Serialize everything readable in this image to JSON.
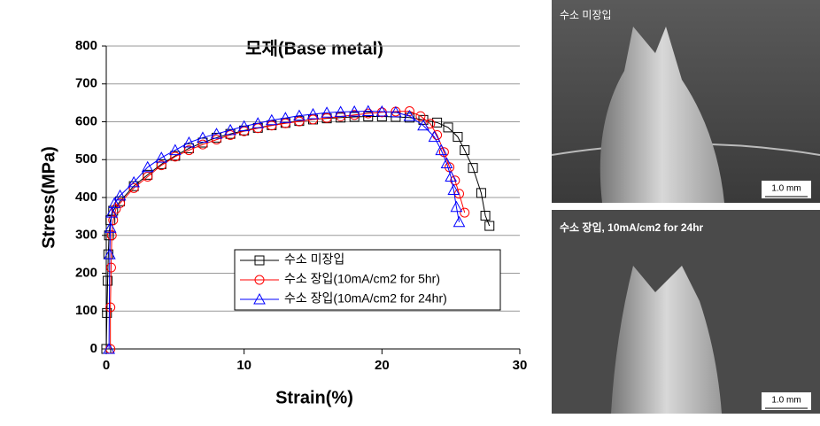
{
  "chart_data": {
    "type": "scatter",
    "title": "모재(Base metal)",
    "x_label": "Strain(%)",
    "y_label": "Stress(MPa)",
    "xlim": [
      0,
      30
    ],
    "ylim": [
      0,
      800
    ],
    "xticks": [
      0,
      10,
      20,
      30
    ],
    "yticks": [
      0,
      100,
      200,
      300,
      400,
      500,
      600,
      700,
      800
    ],
    "grid": true,
    "legend": "lower right",
    "series": [
      {
        "name": "수소 미장입",
        "color": "#000000",
        "marker": "square",
        "x": [
          0,
          0.05,
          0.1,
          0.15,
          0.2,
          0.3,
          0.5,
          1,
          2,
          3,
          4,
          5,
          6,
          7,
          8,
          9,
          10,
          11,
          12,
          13,
          14,
          15,
          16,
          17,
          18,
          19,
          20,
          21,
          22,
          23,
          24,
          24.8,
          25.5,
          26,
          26.6,
          27.2,
          27.5,
          27.8
        ],
        "values": [
          0,
          95,
          180,
          250,
          300,
          340,
          365,
          390,
          430,
          460,
          488,
          510,
          530,
          545,
          558,
          568,
          577,
          584,
          591,
          597,
          602,
          606,
          609,
          611,
          613,
          614,
          614,
          613,
          611,
          605,
          598,
          585,
          560,
          525,
          478,
          412,
          352,
          325
        ]
      },
      {
        "name": "수소 장입(10mA/cm2 for 5hr)",
        "color": "#ff0000",
        "marker": "circle",
        "x": [
          0.3,
          0.3,
          0.35,
          0.4,
          0.5,
          0.7,
          1,
          2,
          3,
          4,
          5,
          6,
          7,
          8,
          9,
          10,
          11,
          12,
          13,
          14,
          15,
          16,
          17,
          18,
          19,
          20,
          21,
          22,
          22.8,
          23.5,
          24,
          24.5,
          24.9,
          25.3,
          25.6,
          26
        ],
        "values": [
          0,
          110,
          215,
          300,
          340,
          370,
          385,
          425,
          455,
          485,
          508,
          525,
          540,
          553,
          565,
          575,
          583,
          590,
          596,
          601,
          606,
          610,
          614,
          618,
          622,
          625,
          627,
          628,
          615,
          595,
          565,
          520,
          480,
          445,
          410,
          360
        ]
      },
      {
        "name": "수소 장입(10mA/cm2 for 24hr)",
        "color": "#0000ff",
        "marker": "triangle",
        "x": [
          0.2,
          0.25,
          0.3,
          0.4,
          0.6,
          1,
          2,
          3,
          4,
          5,
          6,
          7,
          8,
          9,
          10,
          11,
          12,
          13,
          14,
          15,
          16,
          17,
          18,
          19,
          20,
          21,
          22,
          23,
          23.8,
          24.3,
          24.7,
          25,
          25.2,
          25.4,
          25.6
        ],
        "values": [
          0,
          250,
          320,
          360,
          385,
          405,
          440,
          480,
          505,
          525,
          545,
          558,
          568,
          578,
          588,
          596,
          604,
          610,
          616,
          620,
          624,
          626,
          627,
          628,
          627,
          625,
          615,
          590,
          560,
          525,
          490,
          455,
          420,
          375,
          335
        ]
      }
    ]
  },
  "images": [
    {
      "caption": "수소 미장입",
      "scale_bar": "1.0 mm"
    },
    {
      "caption": "수소 장입, 10mA/cm2 for 24hr",
      "scale_bar": "1.0 mm"
    }
  ]
}
